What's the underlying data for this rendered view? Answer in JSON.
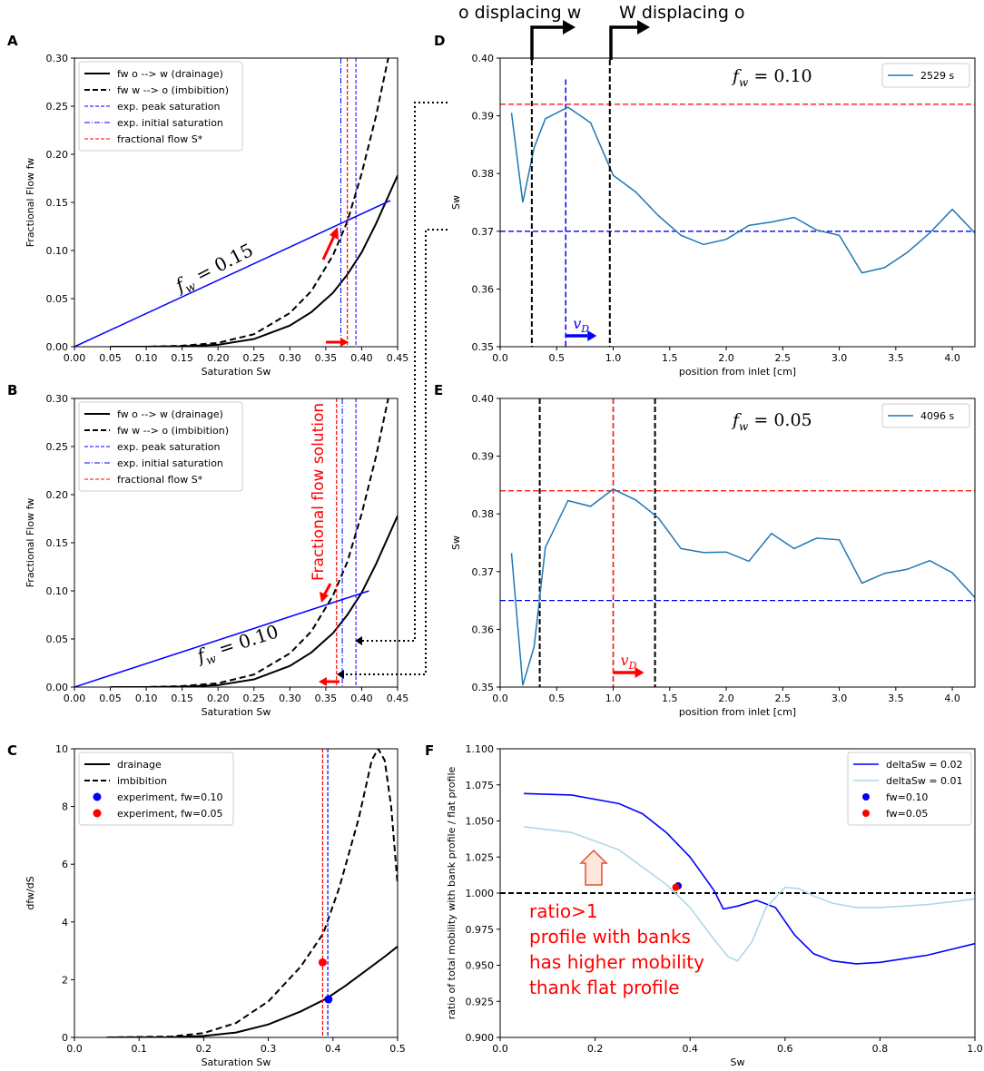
{
  "header": {
    "left_label": "o displacing w",
    "right_label": "W displacing o"
  },
  "colors": {
    "blue": "#0000ff",
    "red": "#ff0000",
    "series": "#1f77b4",
    "lightblue": "#add8e6",
    "black": "#000000"
  },
  "chart_data": [
    {
      "panel": "A",
      "type": "line",
      "xlabel": "Saturation Sw",
      "ylabel": "Fractional Flow fw",
      "xlim": [
        0,
        0.45
      ],
      "ylim": [
        0,
        0.3
      ],
      "xticks": [
        "0.00",
        "0.05",
        "0.10",
        "0.15",
        "0.20",
        "0.25",
        "0.30",
        "0.35",
        "0.40",
        "0.45"
      ],
      "yticks": [
        "0.00",
        "0.05",
        "0.10",
        "0.15",
        "0.20",
        "0.25",
        "0.30"
      ],
      "legend": [
        "fw o --> w (drainage)",
        "fw w --> o (imbibition)",
        "exp. peak saturation",
        "exp. initial saturation",
        "fractional flow S*"
      ],
      "annotation": "f_w = 0.15",
      "series": [
        {
          "name": "fw o --> w (drainage)",
          "x": [
            0.05,
            0.1,
            0.15,
            0.2,
            0.25,
            0.3,
            0.33,
            0.36,
            0.38,
            0.4,
            0.42,
            0.45
          ],
          "y": [
            0,
            0,
            0.0005,
            0.002,
            0.008,
            0.022,
            0.036,
            0.056,
            0.075,
            0.098,
            0.128,
            0.178
          ]
        },
        {
          "name": "fw w --> o (imbibition)",
          "x": [
            0.05,
            0.1,
            0.15,
            0.2,
            0.25,
            0.3,
            0.33,
            0.36,
            0.38,
            0.4,
            0.42,
            0.437
          ],
          "y": [
            0,
            0,
            0.001,
            0.004,
            0.013,
            0.035,
            0.058,
            0.095,
            0.13,
            0.18,
            0.24,
            0.3
          ]
        },
        {
          "name": "f_w = 0.15 line",
          "x": [
            0,
            0.44
          ],
          "y": [
            0,
            0.152
          ]
        }
      ],
      "vlines": [
        0.371,
        0.392,
        0.38
      ]
    },
    {
      "panel": "B",
      "type": "line",
      "xlabel": "Saturation Sw",
      "ylabel": "Fractional Flow fw",
      "xlim": [
        0,
        0.45
      ],
      "ylim": [
        0,
        0.3
      ],
      "xticks": [
        "0.00",
        "0.05",
        "0.10",
        "0.15",
        "0.20",
        "0.25",
        "0.30",
        "0.35",
        "0.40",
        "0.45"
      ],
      "yticks": [
        "0.00",
        "0.05",
        "0.10",
        "0.15",
        "0.20",
        "0.25",
        "0.30"
      ],
      "legend": [
        "fw o --> w (drainage)",
        "fw w --> o (imbibition)",
        "exp. peak saturation",
        "exp. initial saturation",
        "fractional flow S*"
      ],
      "annotation": "f_w = 0.10",
      "side_annotation": "Fractional flow solution",
      "series": [
        {
          "name": "fw o --> w (drainage)",
          "x": [
            0.05,
            0.1,
            0.15,
            0.2,
            0.25,
            0.3,
            0.33,
            0.36,
            0.38,
            0.4,
            0.42,
            0.45
          ],
          "y": [
            0,
            0,
            0.0005,
            0.002,
            0.008,
            0.022,
            0.036,
            0.056,
            0.075,
            0.098,
            0.128,
            0.178
          ]
        },
        {
          "name": "fw w --> o (imbibition)",
          "x": [
            0.05,
            0.1,
            0.15,
            0.2,
            0.25,
            0.3,
            0.33,
            0.36,
            0.38,
            0.4,
            0.42,
            0.437
          ],
          "y": [
            0,
            0,
            0.001,
            0.004,
            0.013,
            0.035,
            0.058,
            0.095,
            0.13,
            0.18,
            0.24,
            0.3
          ]
        },
        {
          "name": "f_w = 0.10 line",
          "x": [
            0,
            0.41
          ],
          "y": [
            0,
            0.1
          ]
        }
      ],
      "vlines": [
        0.373,
        0.392,
        0.365
      ]
    },
    {
      "panel": "C",
      "type": "line",
      "xlabel": "Saturation Sw",
      "ylabel": "dfw/dS",
      "xlim": [
        0,
        0.5
      ],
      "ylim": [
        0,
        10
      ],
      "xticks": [
        "0.0",
        "0.1",
        "0.2",
        "0.3",
        "0.4",
        "0.5"
      ],
      "yticks": [
        "0",
        "2",
        "4",
        "6",
        "8",
        "10"
      ],
      "legend": [
        "drainage",
        "imbibition",
        "experiment, fw=0.10",
        "experiment, fw=0.05"
      ],
      "series": [
        {
          "name": "drainage",
          "x": [
            0.05,
            0.15,
            0.2,
            0.25,
            0.3,
            0.35,
            0.39,
            0.42,
            0.45,
            0.48,
            0.5
          ],
          "y": [
            0,
            0.01,
            0.05,
            0.17,
            0.45,
            0.9,
            1.35,
            1.8,
            2.3,
            2.8,
            3.15
          ]
        },
        {
          "name": "imbibition",
          "x": [
            0.05,
            0.15,
            0.2,
            0.25,
            0.3,
            0.35,
            0.385,
            0.41,
            0.44,
            0.46,
            0.47,
            0.48,
            0.49,
            0.5
          ],
          "y": [
            0,
            0.03,
            0.15,
            0.5,
            1.25,
            2.45,
            3.6,
            5.2,
            7.6,
            9.6,
            10.0,
            9.6,
            8.0,
            5.3
          ]
        },
        {
          "name": "experiment, fw=0.10",
          "x": [
            0.393
          ],
          "y": [
            1.32
          ]
        },
        {
          "name": "experiment, fw=0.05",
          "x": [
            0.384
          ],
          "y": [
            2.6
          ]
        }
      ],
      "vlines": [
        0.384,
        0.392
      ]
    },
    {
      "panel": "D",
      "type": "line",
      "xlabel": "position from inlet [cm]",
      "ylabel": "Sw",
      "xlim": [
        0,
        4.2
      ],
      "ylim": [
        0.35,
        0.4
      ],
      "xticks": [
        "0.0",
        "0.5",
        "1.0",
        "1.5",
        "2.0",
        "2.5",
        "3.0",
        "3.5",
        "4.0"
      ],
      "yticks": [
        "0.35",
        "0.36",
        "0.37",
        "0.38",
        "0.39",
        "0.40"
      ],
      "legend": [
        "2529 s"
      ],
      "annotation": "f_w = 0.10",
      "arrow_label": "v_D",
      "series": [
        {
          "name": "2529 s",
          "x": [
            0.1,
            0.2,
            0.3,
            0.4,
            0.6,
            0.8,
            1.0,
            1.2,
            1.4,
            1.6,
            1.8,
            2.0,
            2.2,
            2.4,
            2.6,
            2.8,
            3.0,
            3.2,
            3.4,
            3.6,
            3.8,
            4.0,
            4.2
          ],
          "y": [
            0.3905,
            0.375,
            0.3845,
            0.3895,
            0.3915,
            0.3888,
            0.3797,
            0.3768,
            0.3727,
            0.3693,
            0.3677,
            0.3686,
            0.371,
            0.3716,
            0.3724,
            0.3702,
            0.3693,
            0.3628,
            0.3637,
            0.3663,
            0.3697,
            0.3738,
            0.3697
          ]
        }
      ],
      "hlines": [
        0.392,
        0.37
      ],
      "vlines": [
        0.28,
        0.58,
        0.97
      ]
    },
    {
      "panel": "E",
      "type": "line",
      "xlabel": "position from inlet [cm]",
      "ylabel": "Sw",
      "xlim": [
        0,
        4.2
      ],
      "ylim": [
        0.35,
        0.4
      ],
      "xticks": [
        "0.0",
        "0.5",
        "1.0",
        "1.5",
        "2.0",
        "2.5",
        "3.0",
        "3.5",
        "4.0"
      ],
      "yticks": [
        "0.35",
        "0.36",
        "0.37",
        "0.38",
        "0.39",
        "0.40"
      ],
      "legend": [
        "4096 s"
      ],
      "annotation": "f_w = 0.05",
      "arrow_label": "v_D",
      "series": [
        {
          "name": "4096 s",
          "x": [
            0.1,
            0.2,
            0.3,
            0.4,
            0.6,
            0.8,
            1.0,
            1.2,
            1.4,
            1.6,
            1.8,
            2.0,
            2.2,
            2.4,
            2.6,
            2.8,
            3.0,
            3.2,
            3.4,
            3.6,
            3.8,
            4.0,
            4.2
          ],
          "y": [
            0.3732,
            0.3503,
            0.357,
            0.3742,
            0.3823,
            0.3813,
            0.3843,
            0.3824,
            0.3793,
            0.374,
            0.3733,
            0.3734,
            0.3718,
            0.3766,
            0.374,
            0.3758,
            0.3755,
            0.368,
            0.3697,
            0.3704,
            0.3719,
            0.3698,
            0.3655
          ]
        }
      ],
      "hlines": [
        0.384,
        0.365
      ],
      "vlines": [
        0.35,
        1.0,
        1.37
      ]
    },
    {
      "panel": "F",
      "type": "line",
      "xlabel": "Sw",
      "ylabel": "ratio of total mobility with bank profile / flat profile",
      "xlim": [
        0,
        1.0
      ],
      "ylim": [
        0.9,
        1.1
      ],
      "xticks": [
        "0.0",
        "0.2",
        "0.4",
        "0.6",
        "0.8",
        "1.0"
      ],
      "yticks": [
        "0.900",
        "0.925",
        "0.950",
        "0.975",
        "1.000",
        "1.025",
        "1.050",
        "1.075",
        "1.100"
      ],
      "legend": [
        "deltaSw = 0.02",
        "deltaSw = 0.01",
        "fw=0.10",
        "fw=0.05"
      ],
      "annotation_lines": [
        "ratio>1",
        "profile with banks",
        "has higher mobility",
        "thank flat profile"
      ],
      "series": [
        {
          "name": "deltaSw = 0.02",
          "x": [
            0.05,
            0.15,
            0.25,
            0.3,
            0.35,
            0.4,
            0.45,
            0.47,
            0.5,
            0.54,
            0.58,
            0.62,
            0.66,
            0.7,
            0.75,
            0.8,
            0.9,
            1.0
          ],
          "y": [
            1.069,
            1.068,
            1.062,
            1.055,
            1.042,
            1.025,
            1.002,
            0.989,
            0.991,
            0.995,
            0.99,
            0.971,
            0.958,
            0.953,
            0.951,
            0.952,
            0.957,
            0.965
          ]
        },
        {
          "name": "deltaSw = 0.01",
          "x": [
            0.05,
            0.15,
            0.25,
            0.3,
            0.35,
            0.4,
            0.45,
            0.48,
            0.5,
            0.53,
            0.56,
            0.6,
            0.63,
            0.66,
            0.7,
            0.75,
            0.8,
            0.9,
            1.0
          ],
          "y": [
            1.046,
            1.042,
            1.03,
            1.018,
            1.006,
            0.99,
            0.968,
            0.956,
            0.953,
            0.966,
            0.99,
            1.004,
            1.003,
            0.998,
            0.993,
            0.99,
            0.99,
            0.992,
            0.996
          ]
        },
        {
          "name": "fw=0.10",
          "x": [
            0.375
          ],
          "y": [
            1.005
          ]
        },
        {
          "name": "fw=0.05",
          "x": [
            0.37
          ],
          "y": [
            1.004
          ]
        }
      ],
      "hlines": [
        1.0
      ]
    }
  ]
}
